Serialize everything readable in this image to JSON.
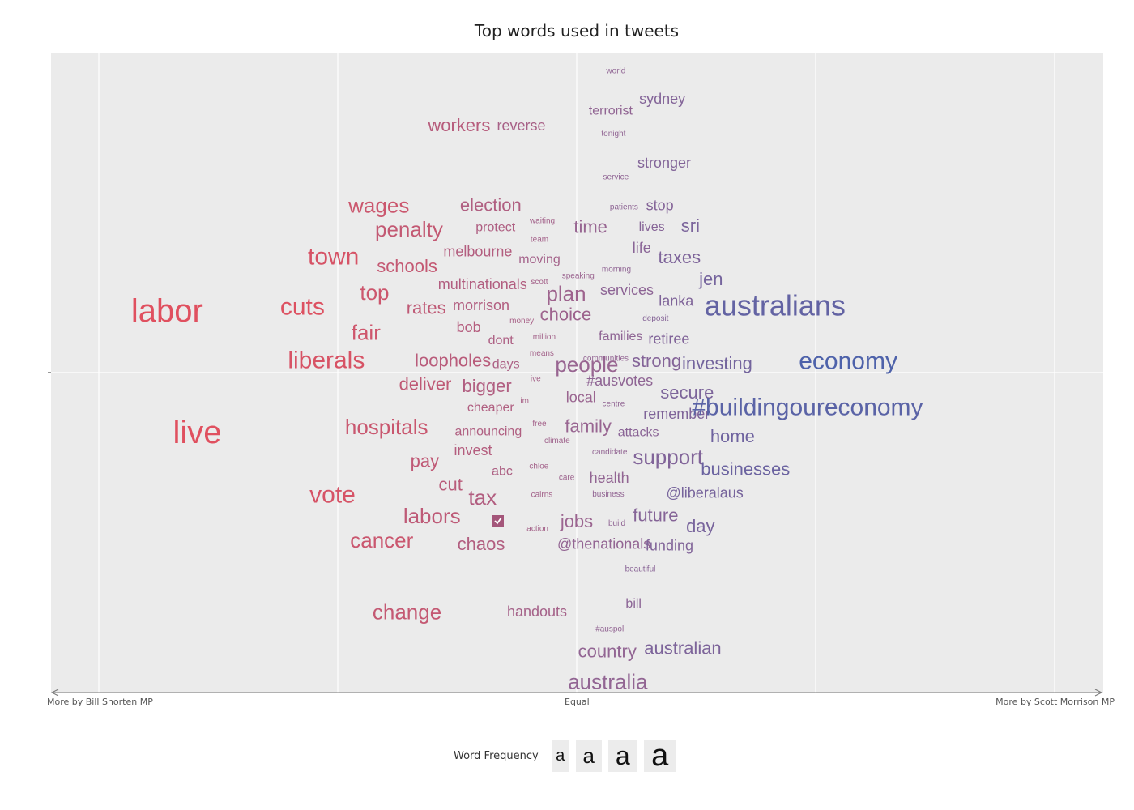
{
  "chart_data": {
    "type": "scatter",
    "title": "Top words used in tweets",
    "x_tick_labels": [
      "More by Bill Shorten MP",
      "Equal",
      "More by Scott Morrison MP"
    ],
    "xlim": [
      -1,
      1
    ],
    "ylim": [
      -1,
      1
    ],
    "grid": true,
    "legend": {
      "title": "Word Frequency",
      "position": "bottom",
      "keys": [
        "a",
        "a",
        "a",
        "a"
      ]
    },
    "color_scale": {
      "low": "#e0505f",
      "high": "#4a62ab",
      "mid": "#9b6590"
    },
    "words": [
      {
        "word": "labor",
        "x": -0.857,
        "y": 0.19,
        "freq": 5
      },
      {
        "word": "live",
        "x": -0.794,
        "y": -0.185,
        "freq": 5
      },
      {
        "word": "cuts",
        "x": -0.574,
        "y": 0.202,
        "freq": 4
      },
      {
        "word": "liberals",
        "x": -0.524,
        "y": 0.038,
        "freq": 4
      },
      {
        "word": "vote",
        "x": -0.511,
        "y": -0.378,
        "freq": 4
      },
      {
        "word": "town",
        "x": -0.509,
        "y": 0.357,
        "freq": 4
      },
      {
        "word": "fair",
        "x": -0.441,
        "y": 0.124,
        "freq": 3.5
      },
      {
        "word": "top",
        "x": -0.423,
        "y": 0.248,
        "freq": 3.5
      },
      {
        "word": "hospitals",
        "x": -0.398,
        "y": -0.167,
        "freq": 3.5
      },
      {
        "word": "wages",
        "x": -0.414,
        "y": 0.516,
        "freq": 3.5
      },
      {
        "word": "cancer",
        "x": -0.408,
        "y": -0.517,
        "freq": 3.5
      },
      {
        "word": "change",
        "x": -0.355,
        "y": -0.739,
        "freq": 3.5
      },
      {
        "word": "penalty",
        "x": -0.351,
        "y": 0.443,
        "freq": 3.5
      },
      {
        "word": "schools",
        "x": -0.355,
        "y": 0.329,
        "freq": 3
      },
      {
        "word": "workers",
        "x": -0.246,
        "y": 0.764,
        "freq": 3
      },
      {
        "word": "labors",
        "x": -0.303,
        "y": -0.442,
        "freq": 3.5
      },
      {
        "word": "rates",
        "x": -0.315,
        "y": 0.2,
        "freq": 3
      },
      {
        "word": "deliver",
        "x": -0.317,
        "y": -0.035,
        "freq": 3
      },
      {
        "word": "pay",
        "x": -0.318,
        "y": -0.272,
        "freq": 3
      },
      {
        "word": "loopholes",
        "x": -0.259,
        "y": 0.038,
        "freq": 3
      },
      {
        "word": "cut",
        "x": -0.264,
        "y": -0.345,
        "freq": 3
      },
      {
        "word": "election",
        "x": -0.18,
        "y": 0.518,
        "freq": 3
      },
      {
        "word": "melbourne",
        "x": -0.207,
        "y": 0.374,
        "freq": 2.5
      },
      {
        "word": "multinationals",
        "x": -0.197,
        "y": 0.272,
        "freq": 2.5
      },
      {
        "word": "bigger",
        "x": -0.188,
        "y": -0.041,
        "freq": 3
      },
      {
        "word": "tax",
        "x": -0.197,
        "y": -0.385,
        "freq": 3.5
      },
      {
        "word": "chaos",
        "x": -0.2,
        "y": -0.529,
        "freq": 3
      },
      {
        "word": "morrison",
        "x": -0.2,
        "y": 0.207,
        "freq": 2.5
      },
      {
        "word": "bob",
        "x": -0.226,
        "y": 0.14,
        "freq": 2.5
      },
      {
        "word": "invest",
        "x": -0.217,
        "y": -0.24,
        "freq": 2.5
      },
      {
        "word": "announcing",
        "x": -0.185,
        "y": -0.182,
        "freq": 2
      },
      {
        "word": "cheaper",
        "x": -0.18,
        "y": -0.109,
        "freq": 2
      },
      {
        "word": "reverse",
        "x": -0.116,
        "y": 0.762,
        "freq": 2.5
      },
      {
        "word": "protect",
        "x": -0.17,
        "y": 0.447,
        "freq": 2
      },
      {
        "word": "dont",
        "x": -0.159,
        "y": 0.099,
        "freq": 2
      },
      {
        "word": "days",
        "x": -0.148,
        "y": 0.025,
        "freq": 2
      },
      {
        "word": "abc",
        "x": -0.156,
        "y": -0.305,
        "freq": 2
      },
      {
        "word": "handouts",
        "x": -0.083,
        "y": -0.737,
        "freq": 2.5
      },
      {
        "word": "moving",
        "x": -0.078,
        "y": 0.349,
        "freq": 2
      },
      {
        "word": "waiting",
        "x": -0.072,
        "y": 0.468,
        "freq": 1
      },
      {
        "word": "team",
        "x": -0.078,
        "y": 0.41,
        "freq": 1
      },
      {
        "word": "scott",
        "x": -0.078,
        "y": 0.279,
        "freq": 1
      },
      {
        "word": "money",
        "x": -0.115,
        "y": 0.159,
        "freq": 1
      },
      {
        "word": "million",
        "x": -0.068,
        "y": 0.109,
        "freq": 1
      },
      {
        "word": "means",
        "x": -0.073,
        "y": 0.059,
        "freq": 1
      },
      {
        "word": "ive",
        "x": -0.086,
        "y": -0.02,
        "freq": 1
      },
      {
        "word": "im",
        "x": -0.109,
        "y": -0.089,
        "freq": 1
      },
      {
        "word": "free",
        "x": -0.078,
        "y": -0.159,
        "freq": 1
      },
      {
        "word": "chloe",
        "x": -0.079,
        "y": -0.29,
        "freq": 1
      },
      {
        "word": "cairns",
        "x": -0.073,
        "y": -0.378,
        "freq": 1
      },
      {
        "word": "action",
        "x": -0.082,
        "y": -0.482,
        "freq": 1
      },
      {
        "word": "climate",
        "x": -0.041,
        "y": -0.211,
        "freq": 1
      },
      {
        "word": "care",
        "x": -0.021,
        "y": -0.325,
        "freq": 1
      },
      {
        "word": "plan",
        "x": -0.022,
        "y": 0.244,
        "freq": 3.5
      },
      {
        "word": "choice",
        "x": -0.023,
        "y": 0.18,
        "freq": 3
      },
      {
        "word": "people",
        "x": 0.021,
        "y": 0.025,
        "freq": 3.5
      },
      {
        "word": "speaking",
        "x": 0.003,
        "y": 0.297,
        "freq": 1
      },
      {
        "word": "time",
        "x": 0.029,
        "y": 0.45,
        "freq": 3
      },
      {
        "word": "local",
        "x": 0.009,
        "y": -0.076,
        "freq": 2.5
      },
      {
        "word": "family",
        "x": 0.024,
        "y": -0.165,
        "freq": 3
      },
      {
        "word": "jobs",
        "x": 0.0,
        "y": -0.459,
        "freq": 3
      },
      {
        "word": "@thenationals",
        "x": 0.057,
        "y": -0.529,
        "freq": 2.5
      },
      {
        "word": "country",
        "x": 0.064,
        "y": -0.86,
        "freq": 3
      },
      {
        "word": "australia",
        "x": 0.065,
        "y": -0.954,
        "freq": 3.5
      },
      {
        "word": "world",
        "x": 0.082,
        "y": 0.93,
        "freq": 1
      },
      {
        "word": "terrorist",
        "x": 0.071,
        "y": 0.807,
        "freq": 2
      },
      {
        "word": "tonight",
        "x": 0.077,
        "y": 0.736,
        "freq": 1
      },
      {
        "word": "service",
        "x": 0.082,
        "y": 0.602,
        "freq": 1
      },
      {
        "word": "patients",
        "x": 0.099,
        "y": 0.51,
        "freq": 1
      },
      {
        "word": "morning",
        "x": 0.083,
        "y": 0.318,
        "freq": 1
      },
      {
        "word": "services",
        "x": 0.105,
        "y": 0.255,
        "freq": 2.5
      },
      {
        "word": "families",
        "x": 0.092,
        "y": 0.111,
        "freq": 2
      },
      {
        "word": "communities",
        "x": 0.061,
        "y": 0.043,
        "freq": 1
      },
      {
        "word": "#ausvotes",
        "x": 0.09,
        "y": -0.025,
        "freq": 2.5
      },
      {
        "word": "centre",
        "x": 0.077,
        "y": -0.098,
        "freq": 1
      },
      {
        "word": "candidate",
        "x": 0.069,
        "y": -0.246,
        "freq": 1
      },
      {
        "word": "health",
        "x": 0.068,
        "y": -0.325,
        "freq": 2.5
      },
      {
        "word": "business",
        "x": 0.066,
        "y": -0.376,
        "freq": 1
      },
      {
        "word": "build",
        "x": 0.084,
        "y": -0.466,
        "freq": 1
      },
      {
        "word": "beautiful",
        "x": 0.133,
        "y": -0.608,
        "freq": 1
      },
      {
        "word": "#auspol",
        "x": 0.069,
        "y": -0.792,
        "freq": 1
      },
      {
        "word": "bill",
        "x": 0.119,
        "y": -0.714,
        "freq": 2
      },
      {
        "word": "australian",
        "x": 0.222,
        "y": -0.85,
        "freq": 3
      },
      {
        "word": "sydney",
        "x": 0.179,
        "y": 0.845,
        "freq": 2.5
      },
      {
        "word": "stronger",
        "x": 0.183,
        "y": 0.647,
        "freq": 2.5
      },
      {
        "word": "stop",
        "x": 0.174,
        "y": 0.516,
        "freq": 2.5
      },
      {
        "word": "lives",
        "x": 0.157,
        "y": 0.449,
        "freq": 2
      },
      {
        "word": "life",
        "x": 0.136,
        "y": 0.385,
        "freq": 2.5
      },
      {
        "word": "deposit",
        "x": 0.165,
        "y": 0.166,
        "freq": 1
      },
      {
        "word": "strong",
        "x": 0.167,
        "y": 0.036,
        "freq": 3
      },
      {
        "word": "attacks",
        "x": 0.129,
        "y": -0.185,
        "freq": 2
      },
      {
        "word": "support",
        "x": 0.191,
        "y": -0.26,
        "freq": 3.5
      },
      {
        "word": "future",
        "x": 0.165,
        "y": -0.44,
        "freq": 3
      },
      {
        "word": "funding",
        "x": 0.194,
        "y": -0.534,
        "freq": 2.5
      },
      {
        "word": "remember",
        "x": 0.209,
        "y": -0.128,
        "freq": 2.5
      },
      {
        "word": "secure",
        "x": 0.231,
        "y": -0.061,
        "freq": 3
      },
      {
        "word": "retiree",
        "x": 0.193,
        "y": 0.104,
        "freq": 2.5
      },
      {
        "word": "lanka",
        "x": 0.208,
        "y": 0.221,
        "freq": 2.5
      },
      {
        "word": "taxes",
        "x": 0.215,
        "y": 0.356,
        "freq": 3
      },
      {
        "word": "sri",
        "x": 0.238,
        "y": 0.454,
        "freq": 3
      },
      {
        "word": "jen",
        "x": 0.281,
        "y": 0.289,
        "freq": 3
      },
      {
        "word": "investing",
        "x": 0.294,
        "y": 0.029,
        "freq": 3
      },
      {
        "word": "home",
        "x": 0.326,
        "y": -0.196,
        "freq": 3
      },
      {
        "word": "businesses",
        "x": 0.353,
        "y": -0.297,
        "freq": 3
      },
      {
        "word": "@liberalaus",
        "x": 0.268,
        "y": -0.371,
        "freq": 2.5
      },
      {
        "word": "day",
        "x": 0.259,
        "y": -0.474,
        "freq": 3
      },
      {
        "word": "australians",
        "x": 0.415,
        "y": 0.208,
        "freq": 4.5
      },
      {
        "word": "economy",
        "x": 0.568,
        "y": 0.035,
        "freq": 4
      },
      {
        "word": "#buildingoureconomy",
        "x": 0.483,
        "y": -0.107,
        "freq": 4
      }
    ]
  }
}
